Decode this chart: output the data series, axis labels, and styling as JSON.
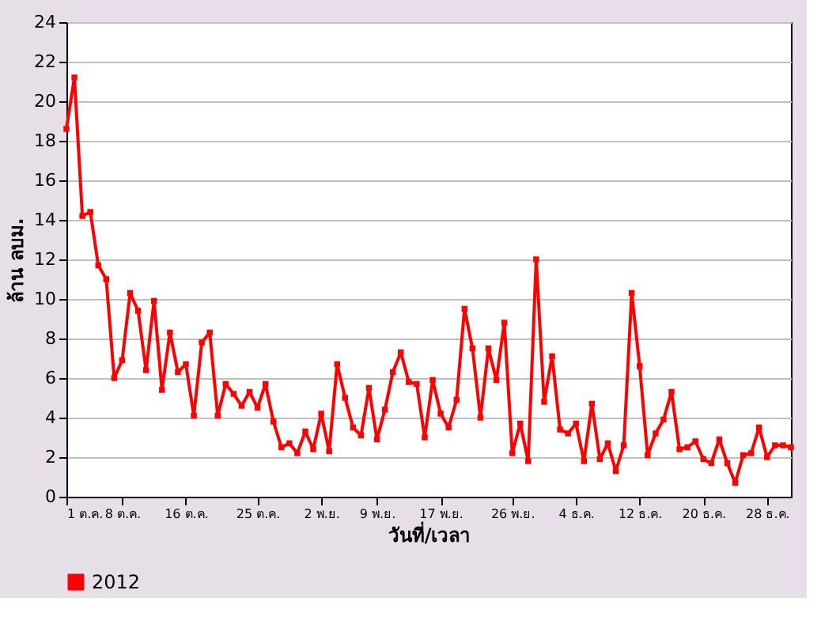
{
  "chart_data": {
    "type": "line",
    "xlabel": "วันที่/เวลา",
    "ylabel": "ล้าน ลบม.",
    "x": [
      "2012-10-01",
      "2012-10-02",
      "2012-10-03",
      "2012-10-04",
      "2012-10-05",
      "2012-10-06",
      "2012-10-07",
      "2012-10-08",
      "2012-10-09",
      "2012-10-10",
      "2012-10-11",
      "2012-10-12",
      "2012-10-13",
      "2012-10-14",
      "2012-10-15",
      "2012-10-16",
      "2012-10-17",
      "2012-10-18",
      "2012-10-19",
      "2012-10-20",
      "2012-10-21",
      "2012-10-22",
      "2012-10-23",
      "2012-10-24",
      "2012-10-25",
      "2012-10-26",
      "2012-10-27",
      "2012-10-28",
      "2012-10-29",
      "2012-10-30",
      "2012-10-31",
      "2012-11-01",
      "2012-11-02",
      "2012-11-03",
      "2012-11-04",
      "2012-11-05",
      "2012-11-06",
      "2012-11-07",
      "2012-11-08",
      "2012-11-09",
      "2012-11-10",
      "2012-11-11",
      "2012-11-12",
      "2012-11-13",
      "2012-11-14",
      "2012-11-15",
      "2012-11-16",
      "2012-11-17",
      "2012-11-18",
      "2012-11-19",
      "2012-11-20",
      "2012-11-21",
      "2012-11-22",
      "2012-11-23",
      "2012-11-24",
      "2012-11-25",
      "2012-11-26",
      "2012-11-27",
      "2012-11-28",
      "2012-11-29",
      "2012-11-30",
      "2012-12-01",
      "2012-12-02",
      "2012-12-03",
      "2012-12-04",
      "2012-12-05",
      "2012-12-06",
      "2012-12-07",
      "2012-12-08",
      "2012-12-09",
      "2012-12-10",
      "2012-12-11",
      "2012-12-12",
      "2012-12-13",
      "2012-12-14",
      "2012-12-15",
      "2012-12-16",
      "2012-12-17",
      "2012-12-18",
      "2012-12-19",
      "2012-12-20",
      "2012-12-21",
      "2012-12-22",
      "2012-12-23",
      "2012-12-24",
      "2012-12-25",
      "2012-12-26",
      "2012-12-27",
      "2012-12-28",
      "2012-12-29",
      "2012-12-30",
      "2012-12-31"
    ],
    "series": [
      {
        "name": "2012",
        "color": "#ff0000",
        "values": [
          18.6,
          21.2,
          14.2,
          14.4,
          11.7,
          11.0,
          6.0,
          6.9,
          10.3,
          9.4,
          6.4,
          9.9,
          5.4,
          8.3,
          6.3,
          6.7,
          4.1,
          7.8,
          8.3,
          4.1,
          5.7,
          5.2,
          4.6,
          5.3,
          4.5,
          5.7,
          3.8,
          2.5,
          2.7,
          2.2,
          3.3,
          2.4,
          4.2,
          2.3,
          6.7,
          5.0,
          3.5,
          3.1,
          5.5,
          2.9,
          4.4,
          6.3,
          7.3,
          5.8,
          5.7,
          3.0,
          5.9,
          4.2,
          3.5,
          4.9,
          9.5,
          7.5,
          4.0,
          7.5,
          5.9,
          8.8,
          2.2,
          3.7,
          1.8,
          12.0,
          4.8,
          7.1,
          3.4,
          3.2,
          3.7,
          1.8,
          4.7,
          1.9,
          2.7,
          1.3,
          2.6,
          10.3,
          6.6,
          2.1,
          3.2,
          3.9,
          5.3,
          2.4,
          2.5,
          2.8,
          1.9,
          1.7,
          2.9,
          1.7,
          0.7,
          2.1,
          2.2,
          3.5,
          2.0,
          2.6,
          2.6,
          2.5
        ]
      }
    ],
    "xlim": [
      "2012-10-01",
      "2012-12-31"
    ],
    "xticks": [
      {
        "value": "2012-10-01",
        "label": "1 ต.ค."
      },
      {
        "value": "2012-10-08",
        "label": "8 ต.ค."
      },
      {
        "value": "2012-10-16",
        "label": "16 ต.ค."
      },
      {
        "value": "2012-10-25",
        "label": "25 ต.ค."
      },
      {
        "value": "2012-11-02",
        "label": "2 พ.ย."
      },
      {
        "value": "2012-11-09",
        "label": "9 พ.ย."
      },
      {
        "value": "2012-11-17",
        "label": "17 พ.ย."
      },
      {
        "value": "2012-11-26",
        "label": "26 พ.ย."
      },
      {
        "value": "2012-12-04",
        "label": "4 ธ.ค."
      },
      {
        "value": "2012-12-12",
        "label": "12 ธ.ค."
      },
      {
        "value": "2012-12-20",
        "label": "20 ธ.ค."
      },
      {
        "value": "2012-12-28",
        "label": "28 ธ.ค."
      }
    ],
    "ylim": [
      0,
      24
    ],
    "yticks": [
      0,
      2,
      4,
      6,
      8,
      10,
      12,
      14,
      16,
      18,
      20,
      22,
      24
    ],
    "grid": "y",
    "legend": "bottom",
    "marker": "square",
    "line_style": "solid"
  }
}
